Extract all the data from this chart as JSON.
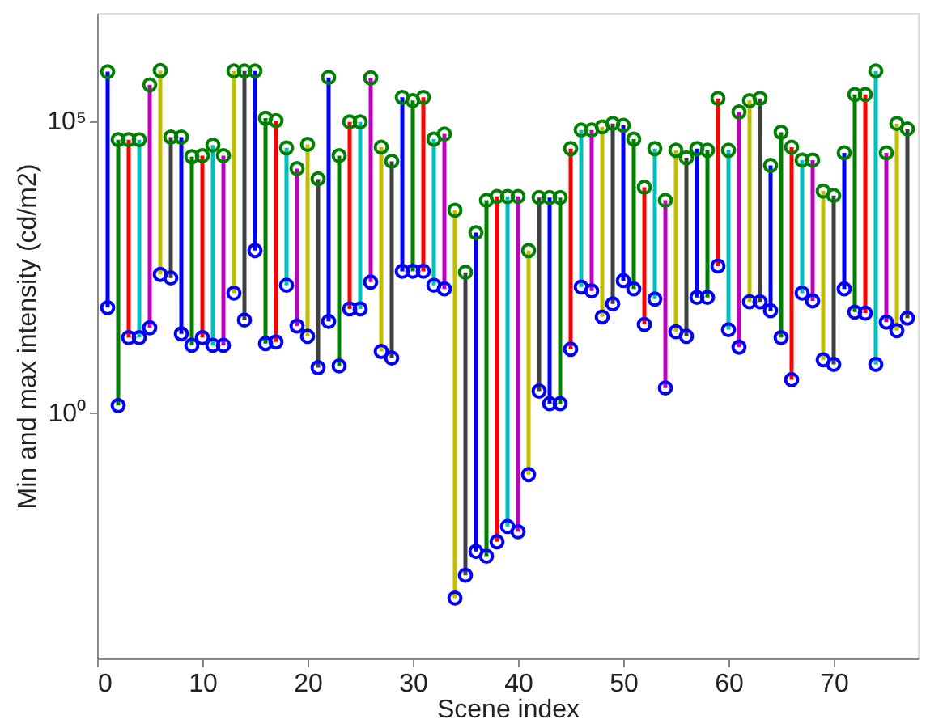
{
  "chart_data": {
    "type": "bar",
    "xlabel": "Scene index",
    "ylabel": "Min and max intensity (cd/m2)",
    "x": [
      1,
      2,
      3,
      4,
      5,
      6,
      7,
      8,
      9,
      10,
      11,
      12,
      13,
      14,
      15,
      16,
      17,
      18,
      19,
      20,
      21,
      22,
      23,
      24,
      25,
      26,
      27,
      28,
      29,
      30,
      31,
      32,
      33,
      34,
      35,
      36,
      37,
      38,
      39,
      40,
      41,
      42,
      43,
      44,
      45,
      46,
      47,
      48,
      49,
      50,
      51,
      52,
      53,
      54,
      55,
      56,
      57,
      58,
      59,
      60,
      61,
      62,
      63,
      64,
      65,
      66,
      67,
      68,
      69,
      70,
      71,
      72,
      73,
      74,
      75,
      76,
      77
    ],
    "series": [
      {
        "base": [
          62,
          1.3,
          19,
          19,
          28,
          230,
          200,
          22,
          14,
          19,
          14,
          14,
          110,
          38,
          590,
          15,
          16,
          150,
          30,
          20,
          5.8,
          36,
          6.2,
          59,
          59,
          170,
          11,
          8.5,
          260,
          260,
          260,
          150,
          130,
          0.00065,
          0.0016,
          0.0041,
          0.0034,
          0.006,
          0.011,
          0.0089,
          0.085,
          2.3,
          1.4,
          1.4,
          12,
          140,
          120,
          43,
          72,
          180,
          130,
          32,
          87,
          2.6,
          24,
          20,
          93,
          93,
          320,
          26,
          13,
          78,
          78,
          55,
          19,
          3.6,
          110,
          81,
          7.9,
          6.6,
          130,
          52,
          50,
          6.6,
          35,
          25,
          41
        ],
        "values": [
          689938,
          46998.7,
          46981,
          46981,
          409972,
          719770,
          51800,
          51978,
          23986,
          24981,
          37986,
          24986,
          709890,
          709962,
          709410,
          109985,
          99984,
          33850,
          14970,
          38980,
          9994.2,
          549964,
          24993.8,
          94941,
          94941,
          539830,
          34989,
          19991.5,
          249740,
          219740,
          249740,
          47850,
          58870,
          2899.99935,
          249.9984,
          1199.9959,
          4299.9966,
          4999.994,
          4999.989,
          4999.9911,
          589.915,
          4797.7,
          4798.6,
          4798.6,
          32988,
          68860,
          68880,
          77957,
          88928,
          82820,
          47870,
          7168,
          32913,
          4297.4,
          30976,
          22980,
          32907,
          30907,
          239680,
          30974,
          139987,
          219922,
          239922,
          16945,
          62981,
          34996.4,
          20890,
          20919,
          6192.1,
          5193.4,
          27870,
          279948,
          279950,
          709993.4,
          27965,
          88975,
          71959
        ],
        "colors": [
          "#0000ff",
          "#008000",
          "#ff0000",
          "#00bfbf",
          "#bf00bf",
          "#bfbf00",
          "#404040",
          "#0000ff",
          "#008000",
          "#ff0000",
          "#00bfbf",
          "#bf00bf",
          "#bfbf00",
          "#404040",
          "#0000ff",
          "#008000",
          "#ff0000",
          "#00bfbf",
          "#bf00bf",
          "#bfbf00",
          "#404040",
          "#0000ff",
          "#008000",
          "#ff0000",
          "#00bfbf",
          "#bf00bf",
          "#bfbf00",
          "#404040",
          "#0000ff",
          "#008000",
          "#ff0000",
          "#00bfbf",
          "#bf00bf",
          "#bfbf00",
          "#404040",
          "#0000ff",
          "#008000",
          "#ff0000",
          "#00bfbf",
          "#bf00bf",
          "#bfbf00",
          "#404040",
          "#0000ff",
          "#008000",
          "#ff0000",
          "#00bfbf",
          "#bf00bf",
          "#bfbf00",
          "#404040",
          "#0000ff",
          "#008000",
          "#ff0000",
          "#00bfbf",
          "#bf00bf",
          "#bfbf00",
          "#404040",
          "#0000ff",
          "#008000",
          "#ff0000",
          "#00bfbf",
          "#bf00bf",
          "#bfbf00",
          "#404040",
          "#0000ff",
          "#008000",
          "#ff0000",
          "#00bfbf",
          "#bf00bf",
          "#bfbf00",
          "#404040",
          "#0000ff",
          "#008000",
          "#ff0000",
          "#00bfbf",
          "#bf00bf",
          "#bfbf00",
          "#404040"
        ]
      },
      {
        "type": "scatter",
        "color": "#008000",
        "values": [
          690000,
          47000,
          47000,
          47000,
          410000,
          720000,
          52000,
          52000,
          24000,
          25000,
          38000,
          25000,
          710000,
          710000,
          710000,
          110000,
          100000,
          34000,
          15000,
          39000,
          10000,
          550000,
          25000,
          95000,
          95000,
          540000,
          35000,
          20000,
          250000,
          220000,
          250000,
          48000,
          59000,
          2900,
          250,
          1200,
          4300,
          5000,
          5000,
          5000,
          590,
          4800,
          4800,
          4800,
          33000,
          69000,
          69000,
          78000,
          89000,
          83000,
          48000,
          7200,
          33000,
          4300,
          31000,
          23000,
          33000,
          31000,
          240000,
          31000,
          140000,
          220000,
          240000,
          17000,
          63000,
          35000,
          21000,
          21000,
          6200,
          5200,
          28000,
          280000,
          280000,
          710000,
          28000,
          89000,
          72000
        ]
      },
      {
        "type": "scatter",
        "color": "#0000ff",
        "values": [
          62,
          1.3,
          19,
          19,
          28,
          230,
          200,
          22,
          14,
          19,
          14,
          14,
          110,
          38,
          590,
          15,
          16,
          150,
          30,
          20,
          5.8,
          36,
          6.2,
          59,
          59,
          170,
          11,
          8.5,
          260,
          260,
          260,
          150,
          130,
          0.00065,
          0.0016,
          0.0041,
          0.0034,
          0.006,
          0.011,
          0.0089,
          0.085,
          2.3,
          1.4,
          1.4,
          12,
          140,
          120,
          43,
          72,
          180,
          130,
          32,
          87,
          2.6,
          24,
          20,
          93,
          93,
          320,
          26,
          13,
          78,
          78,
          55,
          19,
          3.6,
          110,
          81,
          7.9,
          6.6,
          130,
          52,
          50,
          6.6,
          35,
          25,
          41
        ]
      }
    ],
    "marker": "circle",
    "log": "y",
    "grid": false,
    "xlim": [
      0,
      78
    ],
    "xticks": [
      0,
      10,
      20,
      30,
      40,
      50,
      60,
      70
    ],
    "ylim": [
      6e-05,
      7000000
    ],
    "yticks": [
      {
        "value": 1,
        "label": "10⁰"
      },
      {
        "value": 100000,
        "label": "10⁵"
      }
    ]
  }
}
